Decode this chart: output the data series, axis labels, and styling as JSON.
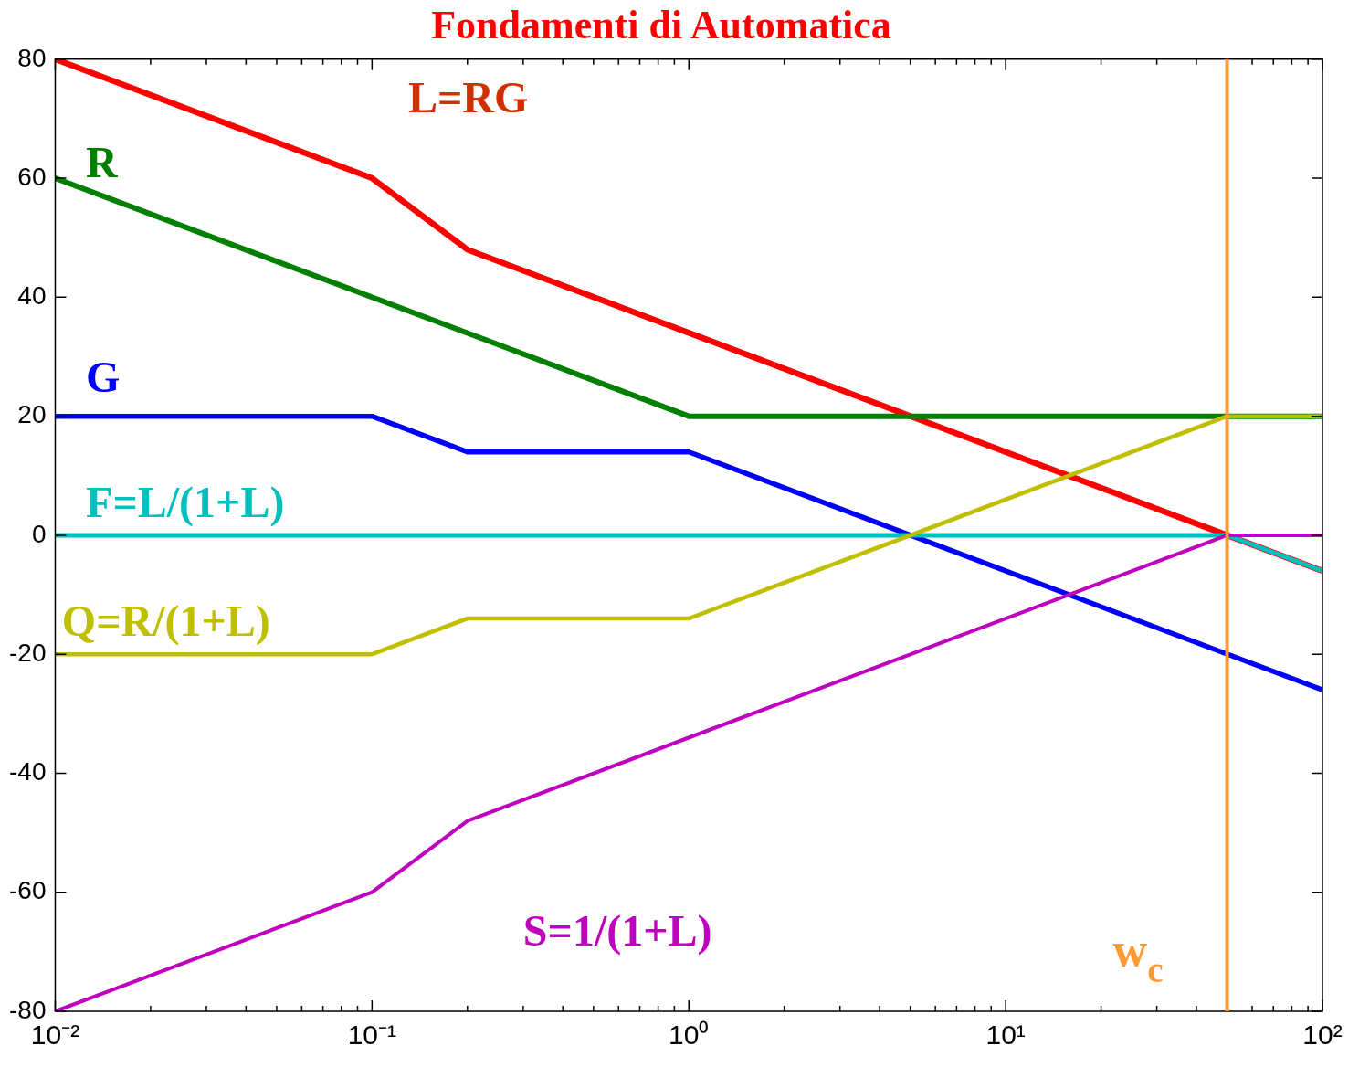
{
  "chart_data": {
    "type": "line",
    "title": "Fondamenti di Automatica",
    "log": "x",
    "grid": false,
    "legend": false,
    "marker": "none",
    "line_style": "solid",
    "xlim": [
      0.01,
      100
    ],
    "ylim": [
      -80,
      80
    ],
    "xticks": [
      {
        "value": 0.01,
        "label": "10⁻²"
      },
      {
        "value": 0.02,
        "label": null
      },
      {
        "value": 0.03,
        "label": null
      },
      {
        "value": 0.04,
        "label": null
      },
      {
        "value": 0.05,
        "label": null
      },
      {
        "value": 0.06,
        "label": null
      },
      {
        "value": 0.07,
        "label": null
      },
      {
        "value": 0.08,
        "label": null
      },
      {
        "value": 0.09,
        "label": null
      },
      {
        "value": 0.1,
        "label": "10⁻¹"
      },
      {
        "value": 0.2,
        "label": null
      },
      {
        "value": 0.3,
        "label": null
      },
      {
        "value": 0.4,
        "label": null
      },
      {
        "value": 0.5,
        "label": null
      },
      {
        "value": 0.6,
        "label": null
      },
      {
        "value": 0.7,
        "label": null
      },
      {
        "value": 0.8,
        "label": null
      },
      {
        "value": 0.9,
        "label": null
      },
      {
        "value": 1,
        "label": "10⁰"
      },
      {
        "value": 2,
        "label": null
      },
      {
        "value": 3,
        "label": null
      },
      {
        "value": 4,
        "label": null
      },
      {
        "value": 5,
        "label": null
      },
      {
        "value": 6,
        "label": null
      },
      {
        "value": 7,
        "label": null
      },
      {
        "value": 8,
        "label": null
      },
      {
        "value": 9,
        "label": null
      },
      {
        "value": 10,
        "label": "10¹"
      },
      {
        "value": 20,
        "label": null
      },
      {
        "value": 30,
        "label": null
      },
      {
        "value": 40,
        "label": null
      },
      {
        "value": 50,
        "label": null
      },
      {
        "value": 60,
        "label": null
      },
      {
        "value": 70,
        "label": null
      },
      {
        "value": 80,
        "label": null
      },
      {
        "value": 90,
        "label": null
      },
      {
        "value": 100,
        "label": "10²"
      }
    ],
    "yticks": [
      -80,
      -60,
      -40,
      -20,
      0,
      20,
      40,
      60,
      80
    ],
    "series": [
      {
        "name": "L=RG",
        "color": "#ff0000",
        "x": [
          0.01,
          0.1,
          0.2,
          50,
          100
        ],
        "values": [
          80,
          60,
          48,
          0,
          -6
        ]
      },
      {
        "name": "R",
        "color": "#007f00",
        "x": [
          0.01,
          1,
          100
        ],
        "values": [
          60,
          20,
          20
        ]
      },
      {
        "name": "G",
        "color": "#0000ff",
        "x": [
          0.01,
          0.1,
          0.2,
          1,
          100
        ],
        "values": [
          20,
          20,
          14,
          14,
          -26
        ]
      },
      {
        "name": "F=L/(1+L)",
        "color": "#00bfbf",
        "x": [
          0.01,
          50,
          100
        ],
        "values": [
          0,
          0,
          -6
        ]
      },
      {
        "name": "Q=R/(1+L)",
        "color": "#bfbf00",
        "x": [
          0.01,
          0.1,
          0.2,
          1,
          50,
          100
        ],
        "values": [
          -20,
          -20,
          -14,
          -14,
          20,
          20
        ]
      },
      {
        "name": "S=1/(1+L)",
        "color": "#bf00bf",
        "x": [
          0.01,
          0.1,
          0.2,
          50,
          100
        ],
        "values": [
          -80,
          -60,
          -48,
          0,
          0
        ]
      }
    ],
    "ref_lines": [
      {
        "axis": "x",
        "value": 50,
        "label": "w$_{c}$",
        "color": "#ff9933"
      }
    ]
  }
}
